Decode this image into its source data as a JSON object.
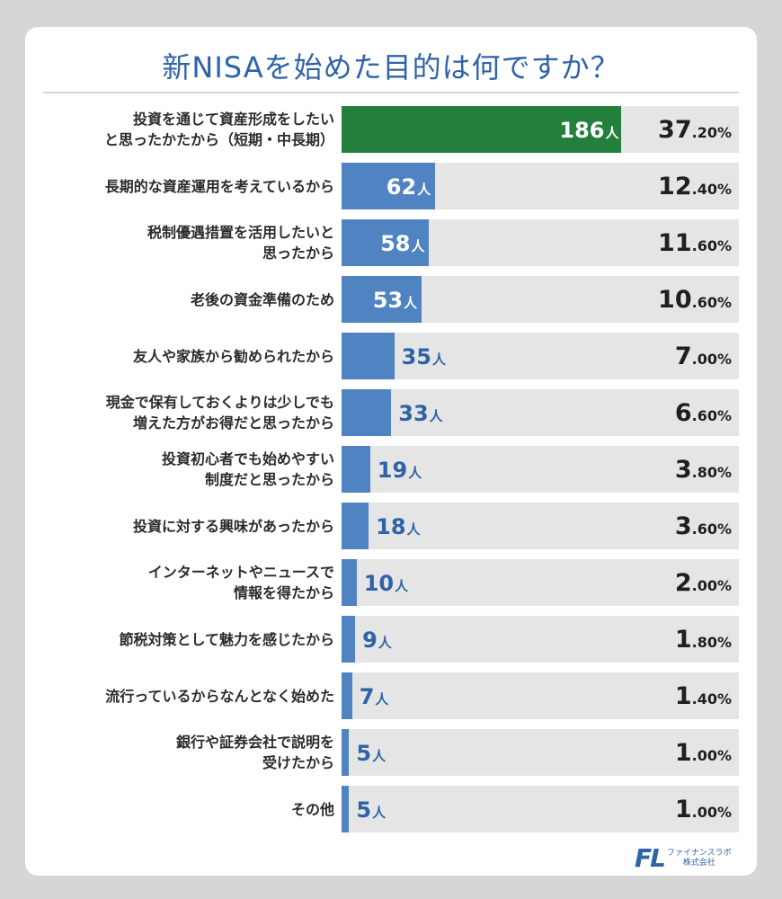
{
  "chart_data": {
    "type": "bar",
    "title": "新NISAを始めた目的は何ですか？",
    "orientation": "horizontal",
    "count_unit": "人",
    "categories": [
      "投資を通じて資産形成をしたい\nと思ったかたから（短期・中長期）",
      "長期的な資産運用を考えているから",
      "税制優遇措置を活用したいと\n思ったから",
      "老後の資金準備のため",
      "友人や家族から勧められたから",
      "現金で保有しておくよりは少しでも\n増えた方がお得だと思ったから",
      "投資初心者でも始めやすい\n制度だと思ったから",
      "投資に対する興味があったから",
      "インターネットやニュースで\n情報を得たから",
      "節税対策として魅力を感じたから",
      "流行っているからなんとなく始めた",
      "銀行や証券会社で説明を\n受けたから",
      "その他"
    ],
    "series": [
      {
        "values": [
          186,
          62,
          58,
          53,
          35,
          33,
          19,
          18,
          10,
          9,
          7,
          5,
          5
        ]
      }
    ],
    "percentages": [
      [
        "37",
        ".20%"
      ],
      [
        "12",
        ".40%"
      ],
      [
        "11",
        ".60%"
      ],
      [
        "10",
        ".60%"
      ],
      [
        "7",
        ".00%"
      ],
      [
        "6",
        ".60%"
      ],
      [
        "3",
        ".80%"
      ],
      [
        "3",
        ".60%"
      ],
      [
        "2",
        ".00%"
      ],
      [
        "1",
        ".80%"
      ],
      [
        "1",
        ".40%"
      ],
      [
        "1",
        ".00%"
      ],
      [
        "1",
        ".00%"
      ]
    ],
    "xlim": [
      0,
      264
    ],
    "colors": {
      "highlight": "#23803c",
      "bar": "#4f83c1",
      "track": "#e5e5e5",
      "title": "#2f63a8"
    }
  },
  "logo": {
    "mark": "FL",
    "text": "ファイナンスラボ\n株式会社"
  }
}
